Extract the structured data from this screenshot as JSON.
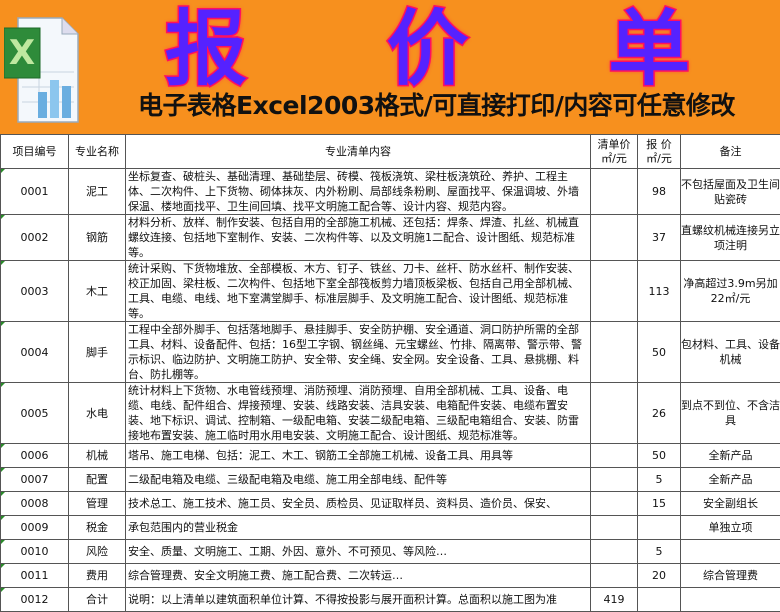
{
  "banner": {
    "title_chars": [
      "报",
      "价",
      "单"
    ],
    "subtitle": "电子表格Excel2003格式/可直接打印/内容可任意修改",
    "logo_icon": "excel-icon",
    "bg_color": "#f7901e"
  },
  "headers": {
    "id": "项目编号",
    "name": "专业名称",
    "content": "专业清单内容",
    "list_price": "清单价\n㎡/元",
    "quote": "报 价\n㎡/元",
    "note": "备注"
  },
  "rows": [
    {
      "id": "0001",
      "name": "泥工",
      "content": "坐标复查、破桩头、基础清理、基础垫层、砖模、筏板浇筑、梁柱板浇筑砼、养护、工程主体、二次构件、上下货物、砌体抹灰、内外粉刷、局部线条粉刷、屋面找平、保温调坡、外墙保温、楼地面找平、卫生间回填、找平文明施工配合等、设计内容、规范内容。",
      "list_price": "",
      "quote": "98",
      "note": "不包括屋面及卫生间贴瓷砖"
    },
    {
      "id": "0002",
      "name": "钢筋",
      "content": "材料分析、放样、制作安装、包括自用的全部施工机械、还包括：焊条、焊渣、扎丝、机械直螺纹连接、包括地下室制作、安装、二次构件等、以及文明施1二配合、设计图纸、规范标准等。",
      "list_price": "",
      "quote": "37",
      "note": "直螺纹机械连接另立项注明"
    },
    {
      "id": "0003",
      "name": "木工",
      "content": "统计采购、下货物堆放、全部模板、木方、钉子、铁丝、刀卡、丝杆、防水丝杆、制作安装、校正加固、梁柱板、二次构件、包括地下室全部筏板剪力墙顶板梁板、包括自己用全部机械、工具、电缆、电线、地下室满堂脚手、标准层脚手、及文明施工配合、设计图纸、规范标准等。",
      "list_price": "",
      "quote": "113",
      "note": "净高超过3.9m另加22㎡/元"
    },
    {
      "id": "0004",
      "name": "脚手",
      "content": "工程中全部外脚手、包括落地脚手、悬挂脚手、安全防护棚、安全通道、洞口防护所需的全部工具、材料、设备配件、包括：16型工字钢、钢丝绳、元宝螺丝、竹排、隔离带、警示带、警示标识、临边防护、文明施工防护、安全带、安全绳、安全网。安全设备、工具、悬挑棚、料台、防扎棚等。",
      "list_price": "",
      "quote": "50",
      "note": "包材料、工具、设备机械"
    },
    {
      "id": "0005",
      "name": "水电",
      "content": "统计材料上下货物、水电管线预埋、消防预埋、消防预埋、自用全部机械、工具、设备、电缆、电线、配件组合、焊接预埋、安装、线路安装、洁具安装、电箱配件安装、电缆布置安装、地下标识、调试、控制箱、一级配电箱、安装二级配电箱、三级配电箱组合、安装、防雷接地布置安装、施工临时用水用电安装、文明施工配合、设计图纸、规范标准等。",
      "list_price": "",
      "quote": "26",
      "note": "到点不到位、不含洁具"
    },
    {
      "id": "0006",
      "name": "机械",
      "content": "塔吊、施工电梯、包括：泥工、木工、钢筋工全部施工机械、设备工具、用具等",
      "list_price": "",
      "quote": "50",
      "note": "全新产品"
    },
    {
      "id": "0007",
      "name": "配置",
      "content": "二级配电箱及电缆、三级配电箱及电缆、施工用全部电线、配件等",
      "list_price": "",
      "quote": "5",
      "note": "全新产品"
    },
    {
      "id": "0008",
      "name": "管理",
      "content": "技术总工、施工技术、施工员、安全员、质检员、见证取样员、资料员、造价员、保安、",
      "list_price": "",
      "quote": "15",
      "note": "安全副组长"
    },
    {
      "id": "0009",
      "name": "税金",
      "content": "承包范围内的营业税金",
      "list_price": "",
      "quote": "",
      "note": "单独立项"
    },
    {
      "id": "0010",
      "name": "风险",
      "content": "安全、质量、文明施工、工期、外因、意外、不可预见、等风险…",
      "list_price": "",
      "quote": "5",
      "note": ""
    },
    {
      "id": "0011",
      "name": "费用",
      "content": "综合管理费、安全文明施工费、施工配合费、二次转运…",
      "list_price": "",
      "quote": "20",
      "note": "综合管理费"
    },
    {
      "id": "0012",
      "name": "合计",
      "content": "说明：以上清单以建筑面积单位计算、不得按投影与展开面积计算。总面积以施工图为准",
      "list_price": "419",
      "quote": "",
      "note": ""
    }
  ]
}
